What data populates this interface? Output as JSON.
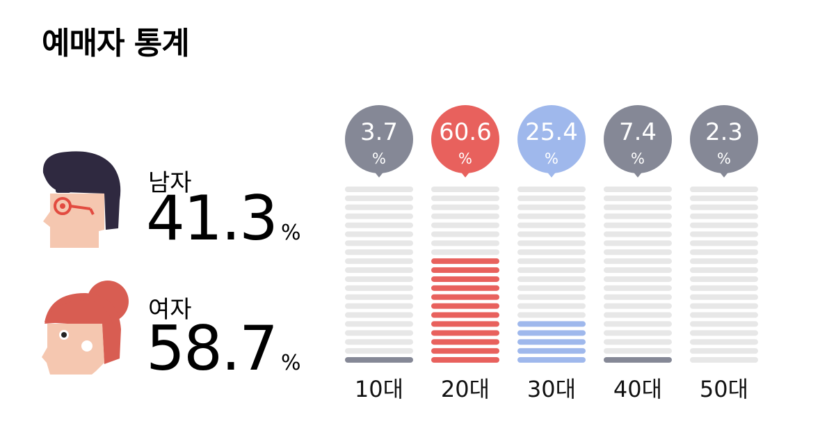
{
  "title": "예매자 통계",
  "gender": {
    "male": {
      "label": "남자",
      "value": "41.3",
      "unit": "%"
    },
    "female": {
      "label": "여자",
      "value": "58.7",
      "unit": "%"
    }
  },
  "chart_data": {
    "type": "bar",
    "title": "",
    "categories": [
      "10대",
      "20대",
      "30대",
      "40대",
      "50대"
    ],
    "values": [
      3.7,
      60.6,
      25.4,
      7.4,
      2.3
    ],
    "value_labels": [
      "3.7",
      "60.6",
      "25.4",
      "7.4",
      "2.3"
    ],
    "unit": "%",
    "ylim": [
      0,
      100
    ],
    "colors": [
      "#858896",
      "#e8615d",
      "#9fb8ec",
      "#858896",
      "#858896"
    ],
    "empty_color": "#e7e7e7"
  },
  "colors": {
    "male_hair": "#2f2940",
    "skin": "#f5c7b0",
    "glasses": "#e24b40",
    "female_hair": "#d85d52"
  }
}
